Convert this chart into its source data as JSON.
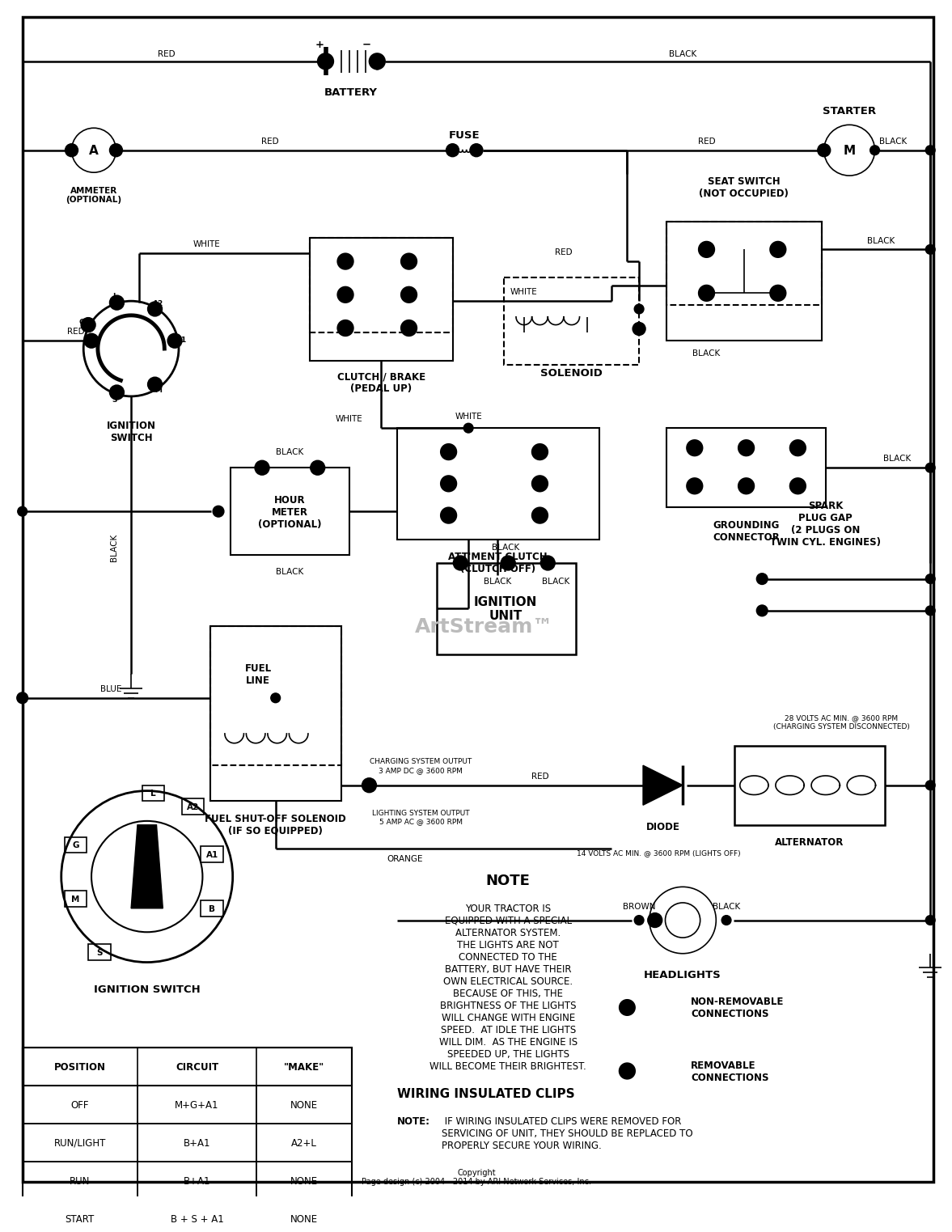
{
  "bg_color": "#ffffff",
  "fig_width": 11.8,
  "fig_height": 14.98,
  "table_headers": [
    "POSITION",
    "CIRCUIT",
    "\"MAKE\""
  ],
  "table_rows": [
    [
      "OFF",
      "M+G+A1",
      "NONE"
    ],
    [
      "RUN/LIGHT",
      "B+A1",
      "A2+L"
    ],
    [
      "RUN",
      "B+A1",
      "NONE"
    ],
    [
      "START",
      "B + S + A1",
      "NONE"
    ]
  ],
  "note_title": "NOTE",
  "note_text": "YOUR TRACTOR IS\nEQUIPPED WITH A SPECIAL\nALTERNATOR SYSTEM.\nTHE LIGHTS ARE NOT\nCONNECTED TO THE\nBATTERY, BUT HAVE THEIR\nOWN ELECTRICAL SOURCE.\nBECAUSE OF THIS, THE\nBRIGHTNESS OF THE LIGHTS\nWILL CHANGE WITH ENGINE\nSPEED.  AT IDLE THE LIGHTS\nWILL DIM.  AS THE ENGINE IS\nSPEEDED UP, THE LIGHTS\nWILL BECOME THEIR BRIGHTEST.",
  "wiring_title": "WIRING INSULATED CLIPS",
  "wiring_note_label": "NOTE:",
  "wiring_text": " IF WIRING INSULATED CLIPS WERE REMOVED FOR\nSERVICING OF UNIT, THEY SHOULD BE REPLACED TO\nPROPERLY SECURE YOUR WIRING.",
  "copyright": "Copyright\nPage design (c) 2004 - 2014 by ARI Network Services, Inc.",
  "watermark": "ArtStream"
}
